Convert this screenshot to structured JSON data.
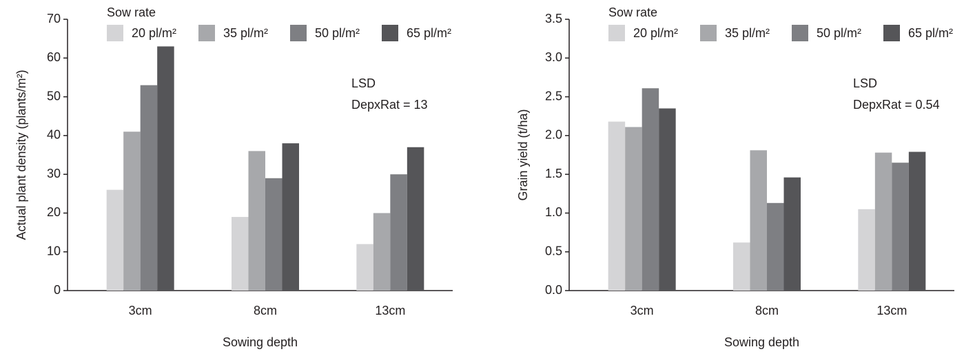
{
  "chart_data": [
    {
      "type": "bar",
      "legend_title": "Sow rate",
      "annotations": [
        "LSD",
        "DepxRat = 13"
      ],
      "xlabel": "Sowing depth",
      "ylabel": "Actual plant density (plants/m²)",
      "categories": [
        "3cm",
        "8cm",
        "13cm"
      ],
      "series": [
        {
          "name": "20 pl/m²",
          "color": "#d4d4d6",
          "values": [
            26,
            19,
            12
          ]
        },
        {
          "name": "35 pl/m²",
          "color": "#a7a8ab",
          "values": [
            41,
            36,
            20
          ]
        },
        {
          "name": "50 pl/m²",
          "color": "#7e7f83",
          "values": [
            53,
            29,
            30
          ]
        },
        {
          "name": "65 pl/m²",
          "color": "#555558",
          "values": [
            63,
            38,
            37
          ]
        }
      ],
      "ylim": [
        0,
        70
      ],
      "yticks": [
        0,
        10,
        20,
        30,
        40,
        50,
        60,
        70
      ]
    },
    {
      "type": "bar",
      "legend_title": "Sow rate",
      "annotations": [
        "LSD",
        "DepxRat = 0.54"
      ],
      "xlabel": "Sowing depth",
      "ylabel": "Grain yield (t/ha)",
      "categories": [
        "3cm",
        "8cm",
        "13cm"
      ],
      "series": [
        {
          "name": "20 pl/m²",
          "color": "#d4d4d6",
          "values": [
            2.18,
            0.62,
            1.05
          ]
        },
        {
          "name": "35 pl/m²",
          "color": "#a7a8ab",
          "values": [
            2.11,
            1.81,
            1.78
          ]
        },
        {
          "name": "50 pl/m²",
          "color": "#7e7f83",
          "values": [
            2.61,
            1.13,
            1.65
          ]
        },
        {
          "name": "65 pl/m²",
          "color": "#555558",
          "values": [
            2.35,
            1.46,
            1.79
          ]
        }
      ],
      "ylim": [
        0,
        3.5
      ],
      "yticks": [
        {
          "value": 0,
          "label": "0.0"
        },
        0.5,
        {
          "value": 1,
          "label": "1.0"
        },
        1.5,
        {
          "value": 2,
          "label": "2.0"
        },
        2.5,
        {
          "value": 3,
          "label": "3.0"
        },
        3.5
      ]
    }
  ]
}
